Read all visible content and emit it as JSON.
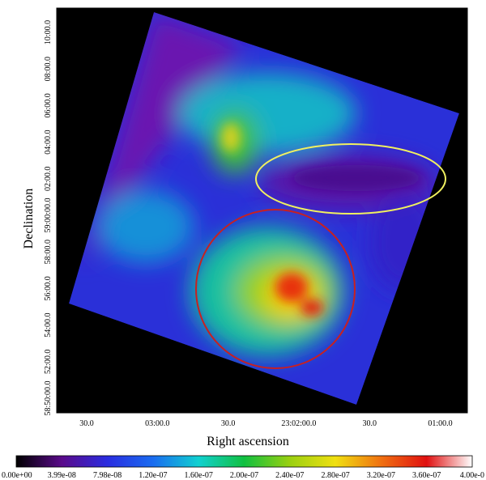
{
  "figure": {
    "x_axis": {
      "label": "Right ascension",
      "ticks": [
        "30.0",
        "03:00.0",
        "30.0",
        "23:02:00.0",
        "30.0",
        "01:00.0"
      ]
    },
    "y_axis": {
      "label": "Declination",
      "ticks": [
        "58:50:00.0",
        "52:00.0",
        "54:00.0",
        "56:00.0",
        "58:00.0",
        "59:00:00.0",
        "02:00.0",
        "04:00.0",
        "06:00.0",
        "08:00.0",
        "10:00.0"
      ]
    },
    "colorbar": {
      "ticks": [
        "0.00e+00",
        "3.99e-08",
        "7.98e-08",
        "1.20e-07",
        "1.60e-07",
        "2.00e-07",
        "2.40e-07",
        "2.80e-07",
        "3.20e-07",
        "3.60e-07",
        "4.00e-0"
      ]
    }
  }
}
